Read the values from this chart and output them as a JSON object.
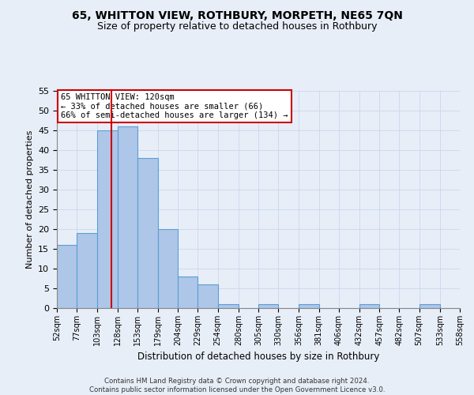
{
  "title": "65, WHITTON VIEW, ROTHBURY, MORPETH, NE65 7QN",
  "subtitle": "Size of property relative to detached houses in Rothbury",
  "xlabel": "Distribution of detached houses by size in Rothbury",
  "ylabel": "Number of detached properties",
  "bin_edges": [
    52,
    77,
    103,
    128,
    153,
    179,
    204,
    229,
    254,
    280,
    305,
    330,
    356,
    381,
    406,
    432,
    457,
    482,
    507,
    533,
    558
  ],
  "bar_heights": [
    16,
    19,
    45,
    46,
    38,
    20,
    8,
    6,
    1,
    0,
    1,
    0,
    1,
    0,
    0,
    1,
    0,
    0,
    1,
    0
  ],
  "bar_color": "#aec6e8",
  "bar_edgecolor": "#5a9fd4",
  "grid_color": "#c8d8ec",
  "property_size": 120,
  "red_line_color": "#cc0000",
  "annotation_text": "65 WHITTON VIEW: 120sqm\n← 33% of detached houses are smaller (66)\n66% of semi-detached houses are larger (134) →",
  "annotation_box_edgecolor": "#cc0000",
  "annotation_box_facecolor": "#ffffff",
  "ylim": [
    0,
    55
  ],
  "yticks": [
    0,
    5,
    10,
    15,
    20,
    25,
    30,
    35,
    40,
    45,
    50,
    55
  ],
  "footer_line1": "Contains HM Land Registry data © Crown copyright and database right 2024.",
  "footer_line2": "Contains public sector information licensed under the Open Government Licence v3.0.",
  "bg_color": "#e8eef8"
}
